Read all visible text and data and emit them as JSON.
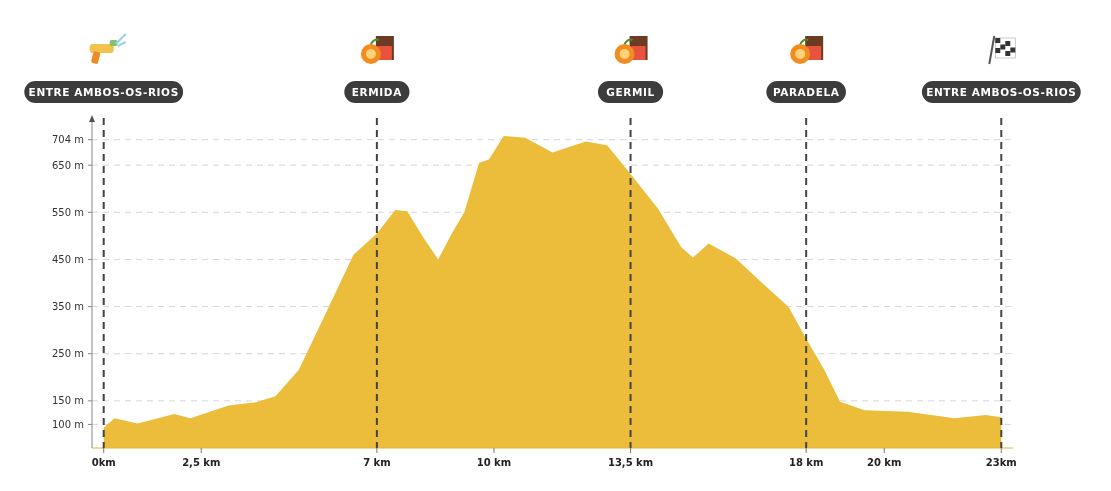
{
  "chart_data": {
    "type": "area",
    "x": [
      0,
      0.28,
      0.87,
      1.81,
      2.22,
      3.2,
      3.9,
      4.4,
      5.0,
      5.8,
      6.4,
      7.0,
      7.47,
      7.78,
      8.16,
      8.57,
      8.92,
      9.24,
      9.62,
      9.87,
      10.25,
      10.8,
      11.5,
      12.35,
      12.9,
      13.53,
      14.2,
      14.8,
      15.1,
      15.5,
      16.2,
      16.7,
      17.55,
      18.0,
      18.45,
      18.87,
      19.5,
      20.6,
      21.8,
      22.6,
      23
    ],
    "series": [
      {
        "color": "#ebbd3a",
        "values": [
          93,
          113,
          102,
          122,
          113,
          140,
          147,
          160,
          216,
          355,
          460,
          505,
          555,
          552,
          500,
          450,
          505,
          550,
          655,
          662,
          712,
          708,
          677,
          700,
          692,
          628,
          558,
          476,
          454,
          484,
          452,
          413,
          349,
          282,
          218,
          148,
          130,
          127,
          113,
          120,
          115
        ]
      }
    ],
    "xlim": [
      -0.3,
      23.3
    ],
    "xticks": [
      {
        "value": 0,
        "label": "0km"
      },
      {
        "value": 2.5,
        "label": "2,5 km"
      },
      {
        "value": 7,
        "label": "7 km"
      },
      {
        "value": 10,
        "label": "10 km"
      },
      {
        "value": 13.5,
        "label": "13,5 km"
      },
      {
        "value": 18,
        "label": "18 km"
      },
      {
        "value": 20,
        "label": "20 km"
      },
      {
        "value": 23,
        "label": "23km"
      }
    ],
    "ylim": [
      50,
      750
    ],
    "yticks": [
      {
        "value": 100,
        "label": "100 m"
      },
      {
        "value": 150,
        "label": "150 m"
      },
      {
        "value": 250,
        "label": "250 m"
      },
      {
        "value": 350,
        "label": "350 m"
      },
      {
        "value": 450,
        "label": "450 m"
      },
      {
        "value": 550,
        "label": "550 m"
      },
      {
        "value": 650,
        "label": "650 m"
      },
      {
        "value": 704,
        "label": "704 m"
      }
    ],
    "grid": "y",
    "ref_lines": [
      {
        "axis": "x",
        "value": 0,
        "label": "ENTRE AMBOS-OS-RIOS",
        "color": "#444444",
        "line_style": "dashed"
      },
      {
        "axis": "x",
        "value": 7,
        "label": "ERMIDA",
        "color": "#444444",
        "line_style": "dashed"
      },
      {
        "axis": "x",
        "value": 13.5,
        "label": "GERMIL",
        "color": "#444444",
        "line_style": "dashed"
      },
      {
        "axis": "x",
        "value": 18,
        "label": "PARADELA",
        "color": "#444444",
        "line_style": "dashed"
      },
      {
        "axis": "x",
        "value": 23,
        "label": "ENTRE AMBOS-OS-RIOS",
        "color": "#444444",
        "line_style": "dashed"
      }
    ]
  }
}
